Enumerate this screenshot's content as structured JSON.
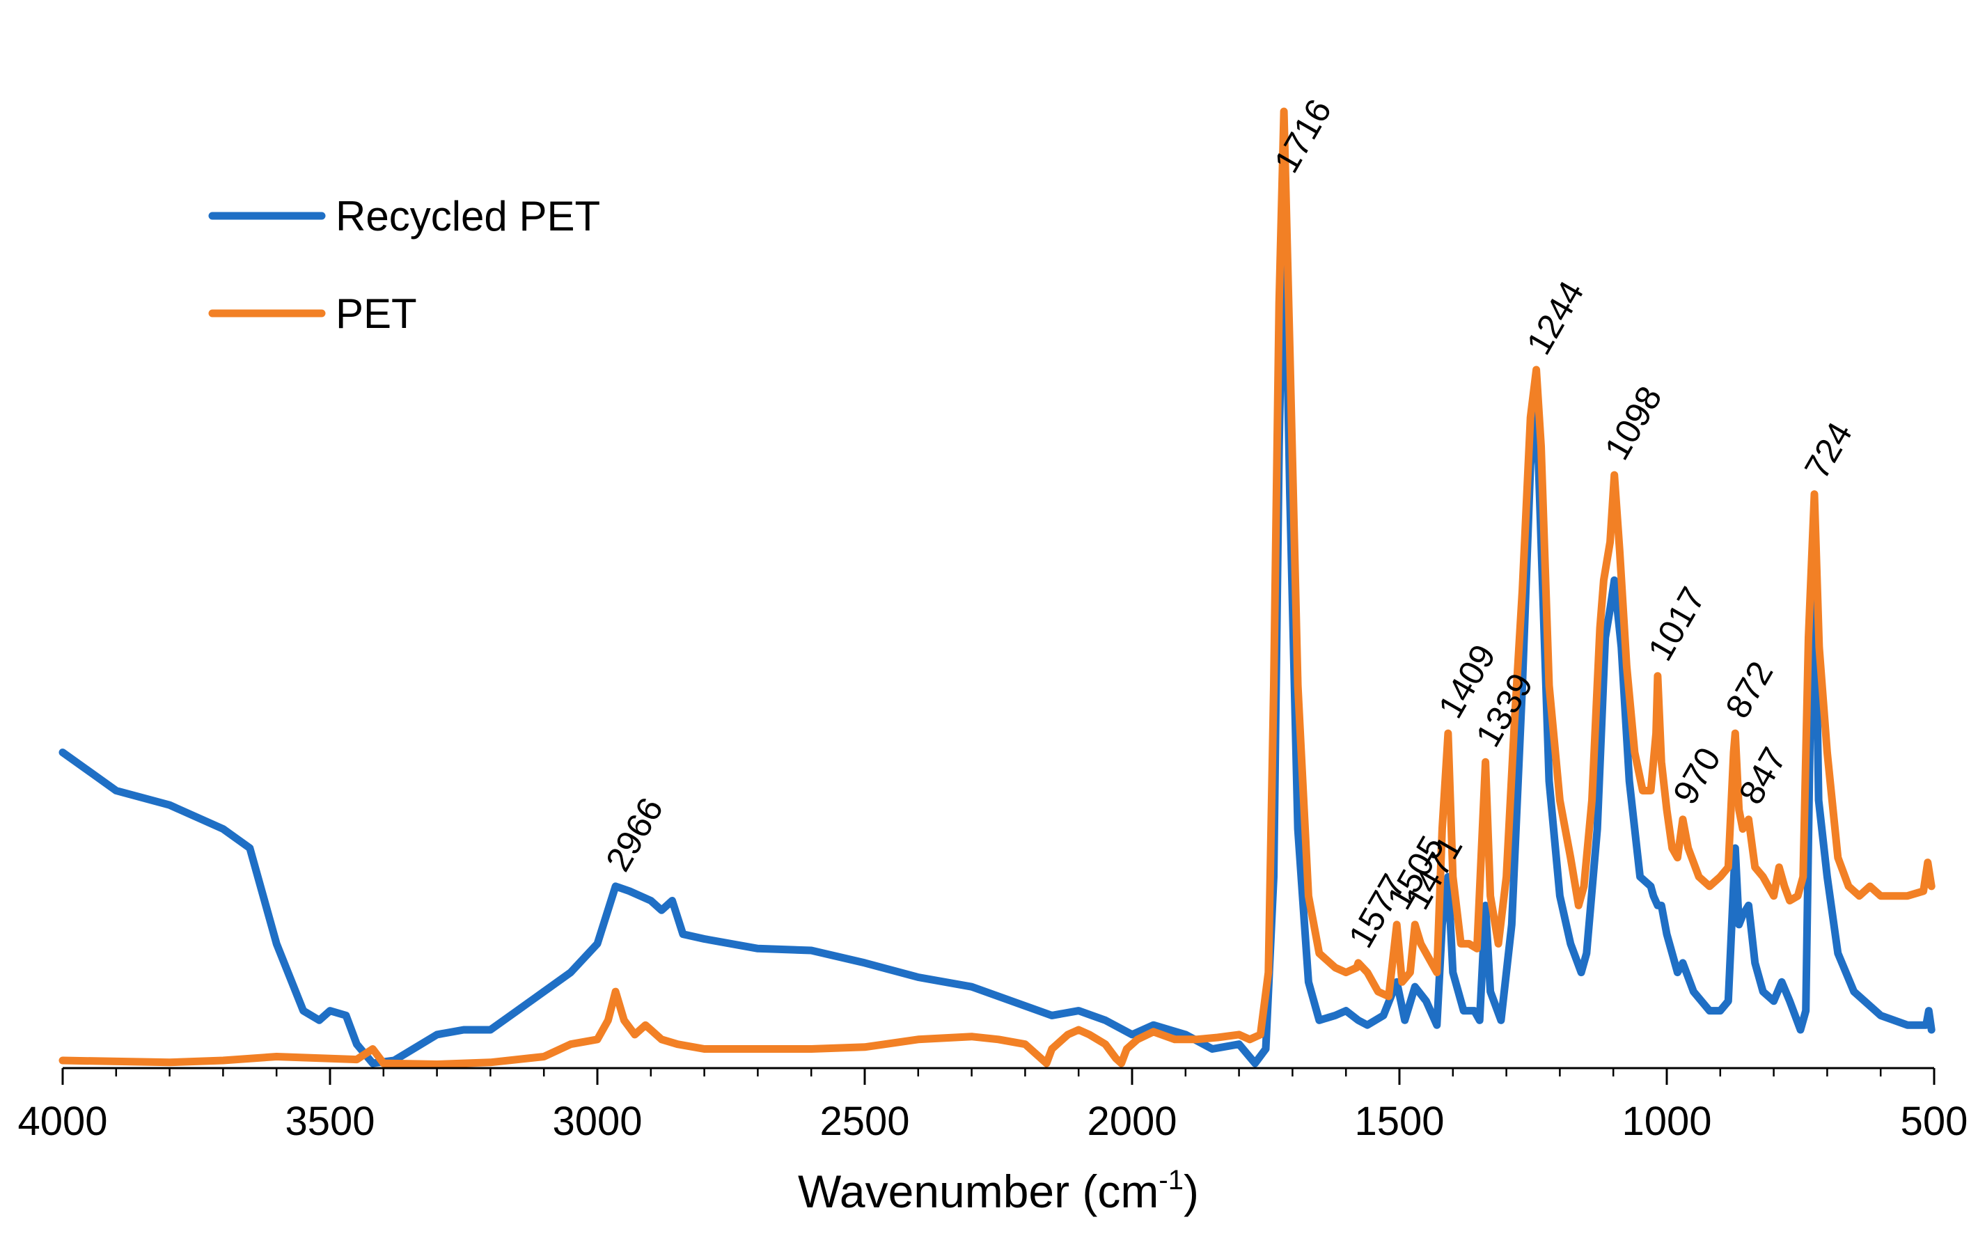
{
  "chart_data": {
    "type": "line",
    "title": "",
    "xlabel": "Wavenumber (cm",
    "xlabel_sup": "-1",
    "xlabel_close": ")",
    "ylabel": "",
    "xlim": [
      4000,
      500
    ],
    "ylim": [
      0,
      100
    ],
    "x_reversed": true,
    "grid": false,
    "legend_position": "top-left",
    "x_ticks": [
      4000,
      3500,
      3000,
      2500,
      2000,
      1500,
      1000,
      500
    ],
    "x_tick_labels": [
      "4000",
      "3500",
      "3000",
      "2500",
      "2000",
      "1500",
      "1000",
      "500"
    ],
    "series": [
      {
        "name": "Recycled PET",
        "color": "#1F6FC5",
        "points": [
          [
            4000,
            33
          ],
          [
            3900,
            29
          ],
          [
            3800,
            27.5
          ],
          [
            3700,
            25
          ],
          [
            3650,
            23
          ],
          [
            3600,
            13
          ],
          [
            3550,
            6
          ],
          [
            3520,
            5
          ],
          [
            3500,
            6
          ],
          [
            3470,
            5.5
          ],
          [
            3450,
            2.5
          ],
          [
            3420,
            0.5
          ],
          [
            3380,
            0.8
          ],
          [
            3300,
            3.5
          ],
          [
            3250,
            4
          ],
          [
            3200,
            4
          ],
          [
            3150,
            6
          ],
          [
            3100,
            8
          ],
          [
            3050,
            10
          ],
          [
            3000,
            13
          ],
          [
            2966,
            19
          ],
          [
            2940,
            18.5
          ],
          [
            2900,
            17.5
          ],
          [
            2880,
            16.5
          ],
          [
            2860,
            17.5
          ],
          [
            2840,
            14
          ],
          [
            2800,
            13.5
          ],
          [
            2700,
            12.5
          ],
          [
            2600,
            12.3
          ],
          [
            2500,
            11
          ],
          [
            2400,
            9.5
          ],
          [
            2300,
            8.5
          ],
          [
            2200,
            6.5
          ],
          [
            2150,
            5.5
          ],
          [
            2100,
            6
          ],
          [
            2050,
            5
          ],
          [
            2000,
            3.5
          ],
          [
            1960,
            4.5
          ],
          [
            1900,
            3.5
          ],
          [
            1850,
            2
          ],
          [
            1800,
            2.5
          ],
          [
            1770,
            0.5
          ],
          [
            1750,
            2
          ],
          [
            1735,
            20
          ],
          [
            1725,
            65
          ],
          [
            1716,
            92
          ],
          [
            1705,
            60
          ],
          [
            1690,
            25
          ],
          [
            1670,
            9
          ],
          [
            1650,
            5
          ],
          [
            1620,
            5.5
          ],
          [
            1600,
            6
          ],
          [
            1577,
            5
          ],
          [
            1560,
            4.5
          ],
          [
            1530,
            5.5
          ],
          [
            1505,
            9
          ],
          [
            1490,
            5
          ],
          [
            1471,
            8.5
          ],
          [
            1450,
            7
          ],
          [
            1430,
            4.5
          ],
          [
            1420,
            15
          ],
          [
            1409,
            20
          ],
          [
            1400,
            10
          ],
          [
            1380,
            6
          ],
          [
            1360,
            6
          ],
          [
            1350,
            5
          ],
          [
            1339,
            17
          ],
          [
            1330,
            8
          ],
          [
            1310,
            5
          ],
          [
            1290,
            15
          ],
          [
            1270,
            40
          ],
          [
            1255,
            63
          ],
          [
            1244,
            70
          ],
          [
            1235,
            55
          ],
          [
            1220,
            30
          ],
          [
            1200,
            18
          ],
          [
            1180,
            13
          ],
          [
            1160,
            10
          ],
          [
            1150,
            12
          ],
          [
            1130,
            25
          ],
          [
            1115,
            45
          ],
          [
            1106,
            48
          ],
          [
            1098,
            51
          ],
          [
            1085,
            44
          ],
          [
            1070,
            30
          ],
          [
            1050,
            20
          ],
          [
            1030,
            19
          ],
          [
            1025,
            18
          ],
          [
            1017,
            17
          ],
          [
            1010,
            17
          ],
          [
            1000,
            14
          ],
          [
            980,
            10
          ],
          [
            970,
            11
          ],
          [
            950,
            8
          ],
          [
            920,
            6
          ],
          [
            900,
            6
          ],
          [
            885,
            7
          ],
          [
            872,
            23
          ],
          [
            865,
            15
          ],
          [
            858,
            16
          ],
          [
            847,
            17
          ],
          [
            835,
            11
          ],
          [
            820,
            8
          ],
          [
            800,
            7
          ],
          [
            785,
            9
          ],
          [
            770,
            7
          ],
          [
            750,
            4
          ],
          [
            740,
            6
          ],
          [
            732,
            35
          ],
          [
            724,
            56
          ],
          [
            716,
            28
          ],
          [
            700,
            20
          ],
          [
            680,
            12
          ],
          [
            650,
            8
          ],
          [
            600,
            5.5
          ],
          [
            550,
            4.5
          ],
          [
            515,
            4.5
          ],
          [
            510,
            6
          ],
          [
            505,
            4
          ]
        ]
      },
      {
        "name": "PET",
        "color": "#F28025",
        "points": [
          [
            4000,
            0.8
          ],
          [
            3800,
            0.6
          ],
          [
            3700,
            0.8
          ],
          [
            3600,
            1.2
          ],
          [
            3500,
            1
          ],
          [
            3450,
            0.9
          ],
          [
            3420,
            2
          ],
          [
            3400,
            0.5
          ],
          [
            3300,
            0.4
          ],
          [
            3200,
            0.6
          ],
          [
            3100,
            1.2
          ],
          [
            3050,
            2.5
          ],
          [
            3000,
            3
          ],
          [
            2980,
            5
          ],
          [
            2966,
            8
          ],
          [
            2950,
            5
          ],
          [
            2930,
            3.5
          ],
          [
            2910,
            4.5
          ],
          [
            2900,
            4
          ],
          [
            2880,
            3
          ],
          [
            2850,
            2.5
          ],
          [
            2800,
            2
          ],
          [
            2700,
            2
          ],
          [
            2600,
            2
          ],
          [
            2500,
            2.2
          ],
          [
            2400,
            3
          ],
          [
            2300,
            3.3
          ],
          [
            2250,
            3
          ],
          [
            2200,
            2.5
          ],
          [
            2160,
            0.5
          ],
          [
            2150,
            2
          ],
          [
            2120,
            3.5
          ],
          [
            2100,
            4
          ],
          [
            2080,
            3.5
          ],
          [
            2050,
            2.5
          ],
          [
            2030,
            1
          ],
          [
            2020,
            0.5
          ],
          [
            2010,
            2
          ],
          [
            1990,
            3
          ],
          [
            1960,
            3.8
          ],
          [
            1920,
            3
          ],
          [
            1880,
            3
          ],
          [
            1840,
            3.2
          ],
          [
            1800,
            3.5
          ],
          [
            1780,
            3
          ],
          [
            1760,
            3.5
          ],
          [
            1745,
            10
          ],
          [
            1735,
            40
          ],
          [
            1725,
            80
          ],
          [
            1716,
            100
          ],
          [
            1705,
            75
          ],
          [
            1690,
            40
          ],
          [
            1670,
            18
          ],
          [
            1650,
            12
          ],
          [
            1620,
            10.5
          ],
          [
            1600,
            10
          ],
          [
            1580,
            10.5
          ],
          [
            1577,
            11
          ],
          [
            1560,
            10
          ],
          [
            1540,
            8
          ],
          [
            1520,
            7.5
          ],
          [
            1505,
            15
          ],
          [
            1495,
            9
          ],
          [
            1480,
            10
          ],
          [
            1471,
            15
          ],
          [
            1460,
            13
          ],
          [
            1440,
            11
          ],
          [
            1430,
            10
          ],
          [
            1420,
            25
          ],
          [
            1409,
            35
          ],
          [
            1400,
            20
          ],
          [
            1385,
            13
          ],
          [
            1370,
            13
          ],
          [
            1355,
            12.5
          ],
          [
            1339,
            32
          ],
          [
            1330,
            18
          ],
          [
            1315,
            13
          ],
          [
            1300,
            20
          ],
          [
            1285,
            36
          ],
          [
            1270,
            50
          ],
          [
            1255,
            68
          ],
          [
            1244,
            73
          ],
          [
            1235,
            65
          ],
          [
            1220,
            40
          ],
          [
            1200,
            28
          ],
          [
            1180,
            22
          ],
          [
            1165,
            17
          ],
          [
            1155,
            19
          ],
          [
            1140,
            28
          ],
          [
            1125,
            46
          ],
          [
            1118,
            51
          ],
          [
            1106,
            55
          ],
          [
            1098,
            62
          ],
          [
            1088,
            54
          ],
          [
            1075,
            42
          ],
          [
            1060,
            33
          ],
          [
            1045,
            29
          ],
          [
            1030,
            29
          ],
          [
            1020,
            35
          ],
          [
            1017,
            41
          ],
          [
            1010,
            32
          ],
          [
            1000,
            27
          ],
          [
            990,
            23
          ],
          [
            980,
            22
          ],
          [
            970,
            26
          ],
          [
            960,
            23
          ],
          [
            940,
            20
          ],
          [
            920,
            19
          ],
          [
            900,
            20
          ],
          [
            885,
            21
          ],
          [
            875,
            33
          ],
          [
            872,
            35
          ],
          [
            865,
            27
          ],
          [
            858,
            25
          ],
          [
            847,
            26
          ],
          [
            835,
            21
          ],
          [
            820,
            20
          ],
          [
            800,
            18
          ],
          [
            790,
            21
          ],
          [
            780,
            19
          ],
          [
            770,
            17.5
          ],
          [
            755,
            18
          ],
          [
            745,
            20
          ],
          [
            735,
            45
          ],
          [
            724,
            60
          ],
          [
            715,
            44
          ],
          [
            700,
            33
          ],
          [
            680,
            22
          ],
          [
            660,
            19
          ],
          [
            640,
            18
          ],
          [
            620,
            19
          ],
          [
            600,
            18
          ],
          [
            550,
            18
          ],
          [
            520,
            18.5
          ],
          [
            512,
            21.5
          ],
          [
            505,
            19
          ]
        ]
      }
    ],
    "annotations": [
      {
        "label": "1716",
        "x": 1716,
        "y": 92
      },
      {
        "label": "1244",
        "x": 1244,
        "y": 73
      },
      {
        "label": "1098",
        "x": 1098,
        "y": 62
      },
      {
        "label": "724",
        "x": 724,
        "y": 60
      },
      {
        "label": "1017",
        "x": 1017,
        "y": 41
      },
      {
        "label": "872",
        "x": 872,
        "y": 35
      },
      {
        "label": "970",
        "x": 970,
        "y": 26
      },
      {
        "label": "847",
        "x": 847,
        "y": 26
      },
      {
        "label": "1339",
        "x": 1339,
        "y": 32
      },
      {
        "label": "1409",
        "x": 1409,
        "y": 35
      },
      {
        "label": "1505",
        "x": 1505,
        "y": 15
      },
      {
        "label": "1471",
        "x": 1471,
        "y": 15
      },
      {
        "label": "1577",
        "x": 1577,
        "y": 11
      },
      {
        "label": "2966",
        "x": 2966,
        "y": 19
      }
    ]
  }
}
